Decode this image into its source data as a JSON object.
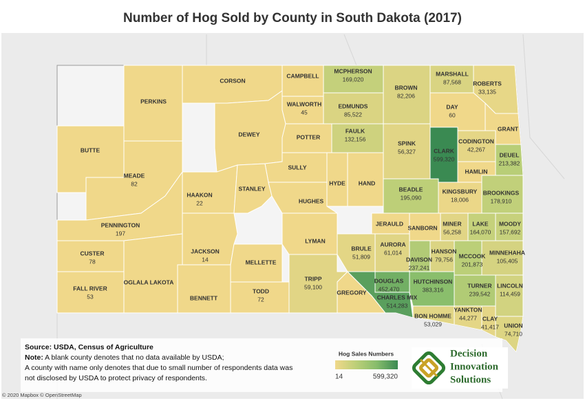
{
  "title": "Number of Hog Sold by County in South Dakota (2017)",
  "counties": [
    {
      "name": "PERKINS"
    },
    {
      "name": "CORSON"
    },
    {
      "name": "CAMPBELL"
    },
    {
      "name": "MCPHERSON",
      "value": 169020,
      "value_label": "169,020"
    },
    {
      "name": "BROWN",
      "value": 82206,
      "value_label": "82,206"
    },
    {
      "name": "MARSHALL",
      "value": 87568,
      "value_label": "87,568"
    },
    {
      "name": "ROBERTS",
      "value": 33135,
      "value_label": "33,135"
    },
    {
      "name": "WALWORTH",
      "value": 45
    },
    {
      "name": "EDMUNDS",
      "value": 85522,
      "value_label": "85,522"
    },
    {
      "name": "DAY",
      "value": 60
    },
    {
      "name": "GRANT"
    },
    {
      "name": "DEWEY"
    },
    {
      "name": "POTTER"
    },
    {
      "name": "FAULK",
      "value": 132156,
      "value_label": "132,156"
    },
    {
      "name": "SPINK",
      "value": 56327,
      "value_label": "56,327"
    },
    {
      "name": "CLARK",
      "value": 599320,
      "value_label": "599,320"
    },
    {
      "name": "CODINGTON",
      "value": 42267,
      "value_label": "42,267"
    },
    {
      "name": "DEUEL",
      "value": 213382,
      "value_label": "213,382"
    },
    {
      "name": "HAMLIN"
    },
    {
      "name": "BUTTE"
    },
    {
      "name": "MEADE",
      "value": 82
    },
    {
      "name": "SULLY"
    },
    {
      "name": "HYDE"
    },
    {
      "name": "HAND"
    },
    {
      "name": "BEADLE",
      "value": 195090,
      "value_label": "195,090"
    },
    {
      "name": "KINGSBURY",
      "value": 18006,
      "value_label": "18,006"
    },
    {
      "name": "BROOKINGS",
      "value": 178910,
      "value_label": "178,910"
    },
    {
      "name": "HAAKON",
      "value": 22
    },
    {
      "name": "STANLEY"
    },
    {
      "name": "HUGHES"
    },
    {
      "name": "PENNINGTON",
      "value": 197
    },
    {
      "name": "JACKSON",
      "value": 14
    },
    {
      "name": "MELLETTE"
    },
    {
      "name": "LYMAN"
    },
    {
      "name": "JERAULD"
    },
    {
      "name": "SANBORN"
    },
    {
      "name": "MINER",
      "value": 56258,
      "value_label": "56,258"
    },
    {
      "name": "LAKE",
      "value": 164070,
      "value_label": "164,070"
    },
    {
      "name": "MOODY",
      "value": 157692,
      "value_label": "157,692"
    },
    {
      "name": "CUSTER",
      "value": 78
    },
    {
      "name": "FALL RIVER",
      "value": 53
    },
    {
      "name": "OGLALA LAKOTA"
    },
    {
      "name": "BENNETT"
    },
    {
      "name": "TODD",
      "value": 72
    },
    {
      "name": "TRIPP",
      "value": 59100,
      "value_label": "59,100"
    },
    {
      "name": "GREGORY"
    },
    {
      "name": "BRULE",
      "value": 51809,
      "value_label": "51,809"
    },
    {
      "name": "AURORA",
      "value": 61014,
      "value_label": "61,014"
    },
    {
      "name": "DAVISON",
      "value": 237241,
      "value_label": "237,241"
    },
    {
      "name": "HANSON",
      "value": 79756,
      "value_label": "79,756"
    },
    {
      "name": "MCCOOK",
      "value": 201873,
      "value_label": "201,873"
    },
    {
      "name": "MINNEHAHA",
      "value": 105405,
      "value_label": "105,405"
    },
    {
      "name": "DOUGLAS",
      "value": 452470,
      "value_label": "452,470"
    },
    {
      "name": "CHARLES MIX",
      "value": 514283,
      "value_label": "514,283"
    },
    {
      "name": "HUTCHINSON",
      "value": 383316,
      "value_label": "383,316"
    },
    {
      "name": "TURNER",
      "value": 239542,
      "value_label": "239,542"
    },
    {
      "name": "LINCOLN",
      "value": 114459,
      "value_label": "114,459"
    },
    {
      "name": "BON HOMME",
      "value": 53029,
      "value_label": "53,029"
    },
    {
      "name": "YANKTON",
      "value": 44277,
      "value_label": "44,277"
    },
    {
      "name": "CLAY",
      "value": 41417,
      "value_label": "41,417"
    },
    {
      "name": "UNION",
      "value": 74710,
      "value_label": "74,710"
    }
  ],
  "legend": {
    "title": "Hog Sales Numbers",
    "min": 14,
    "max": {
      "value": 599320,
      "label": "599,320"
    },
    "colors": [
      "#f0d88a",
      "#bccf78",
      "#86bc6b",
      "#3a8a52"
    ]
  },
  "source": "Source: USDA, Census of Agriculture",
  "note_label": "Note:",
  "note_lines": [
    " A blank county denotes that no data available by USDA;",
    "A county with name only denotes that due to small number of respondents data was",
    "not disclosed by USDA to protect privacy of respondents."
  ],
  "logo": [
    "Decision",
    "Innovation",
    "Solutions"
  ],
  "attribution": "© 2020 Mapbox © OpenStreetMap"
}
